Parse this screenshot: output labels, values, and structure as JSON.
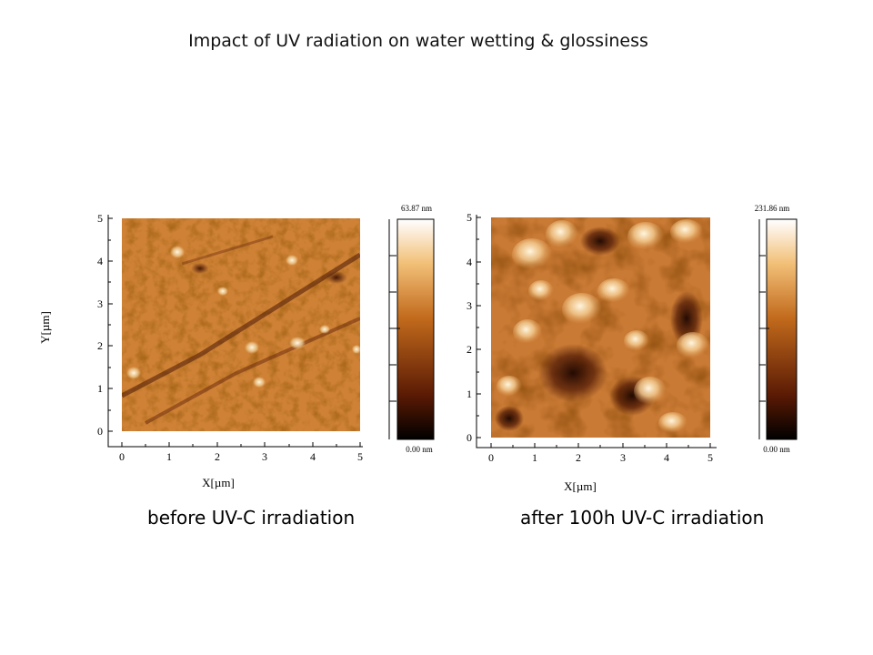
{
  "title": "Impact of UV radiation on water wetting & glossiness",
  "panels": [
    {
      "id": "before",
      "caption": "before UV-C irradiation",
      "x_axis_label": "X[µm]",
      "y_axis_label": "Y[µm]",
      "x_ticks": [
        "0",
        "1",
        "2",
        "3",
        "4",
        "5"
      ],
      "y_ticks": [
        "0",
        "1",
        "2",
        "3",
        "4",
        "5"
      ],
      "scale_max_label": "63.87 nm",
      "scale_min_label": "0.00 nm",
      "height_range_nm": [
        0,
        63.87
      ]
    },
    {
      "id": "after",
      "caption": "after 100h UV-C irradiation",
      "x_axis_label": "X[µm]",
      "y_axis_label": "",
      "x_ticks": [
        "0",
        "1",
        "2",
        "3",
        "4",
        "5"
      ],
      "y_ticks": [
        "0",
        "1",
        "2",
        "3",
        "4",
        "5"
      ],
      "scale_max_label": "231.86 nm",
      "scale_min_label": "0.00 nm",
      "height_range_nm": [
        0,
        231.86
      ]
    }
  ],
  "colors": {
    "colormap_bottom": "#000000",
    "colormap_low": "#5a1a04",
    "colormap_mid": "#c26a1c",
    "colormap_high": "#f2c078",
    "colormap_top": "#ffffff"
  }
}
